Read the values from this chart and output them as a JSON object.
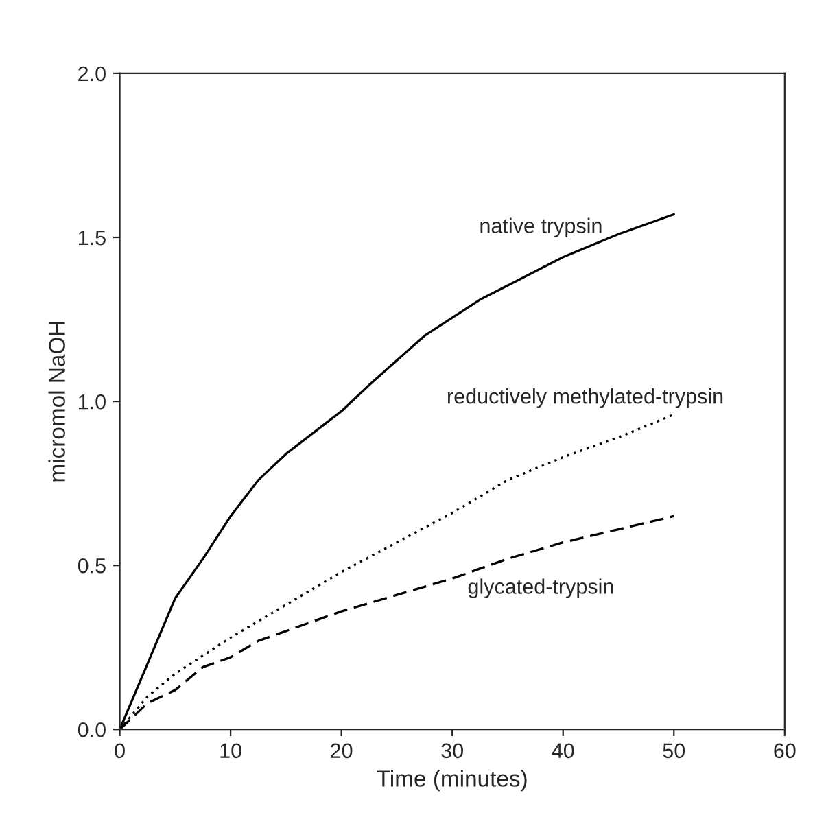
{
  "chart_data": {
    "type": "line",
    "xlabel": "Time (minutes)",
    "ylabel": "micromol NaOH",
    "xlim": [
      0,
      60
    ],
    "xticks": [
      0,
      10,
      20,
      30,
      40,
      50,
      60
    ],
    "ylim": [
      0,
      2.0
    ],
    "yticks": [
      {
        "value": 0,
        "label": "0.0"
      },
      {
        "value": 0.5,
        "label": "0.5"
      },
      {
        "value": 1.0,
        "label": "1.0"
      },
      {
        "value": 1.5,
        "label": "1.5"
      },
      {
        "value": 2.0,
        "label": "2.0"
      }
    ],
    "grid": false,
    "legend": false,
    "marker": "none",
    "series": [
      {
        "name": "native trypsin",
        "color": "#000000",
        "line_style": "solid",
        "x": [
          0,
          2.5,
          5,
          7.5,
          10,
          12.5,
          15,
          20,
          22.5,
          27.5,
          32.5,
          40,
          45,
          50
        ],
        "values": [
          0,
          0.2,
          0.4,
          0.52,
          0.65,
          0.76,
          0.84,
          0.97,
          1.05,
          1.2,
          1.31,
          1.44,
          1.51,
          1.57
        ]
      },
      {
        "name": "reductively methylated-trypsin",
        "color": "#000000",
        "line_style": "dotted",
        "x": [
          0,
          2.5,
          5,
          10,
          15,
          20,
          25,
          30,
          35,
          40,
          45,
          50
        ],
        "values": [
          0,
          0.1,
          0.17,
          0.28,
          0.38,
          0.48,
          0.57,
          0.66,
          0.76,
          0.83,
          0.89,
          0.96
        ]
      },
      {
        "name": "glycated-trypsin",
        "color": "#000000",
        "line_style": "dashed",
        "x": [
          0,
          2.5,
          5,
          7.5,
          10,
          12.5,
          15,
          20,
          25,
          30,
          35,
          40,
          45,
          50
        ],
        "values": [
          0,
          0.08,
          0.12,
          0.19,
          0.22,
          0.27,
          0.3,
          0.36,
          0.41,
          0.46,
          0.52,
          0.57,
          0.61,
          0.65
        ]
      }
    ]
  }
}
